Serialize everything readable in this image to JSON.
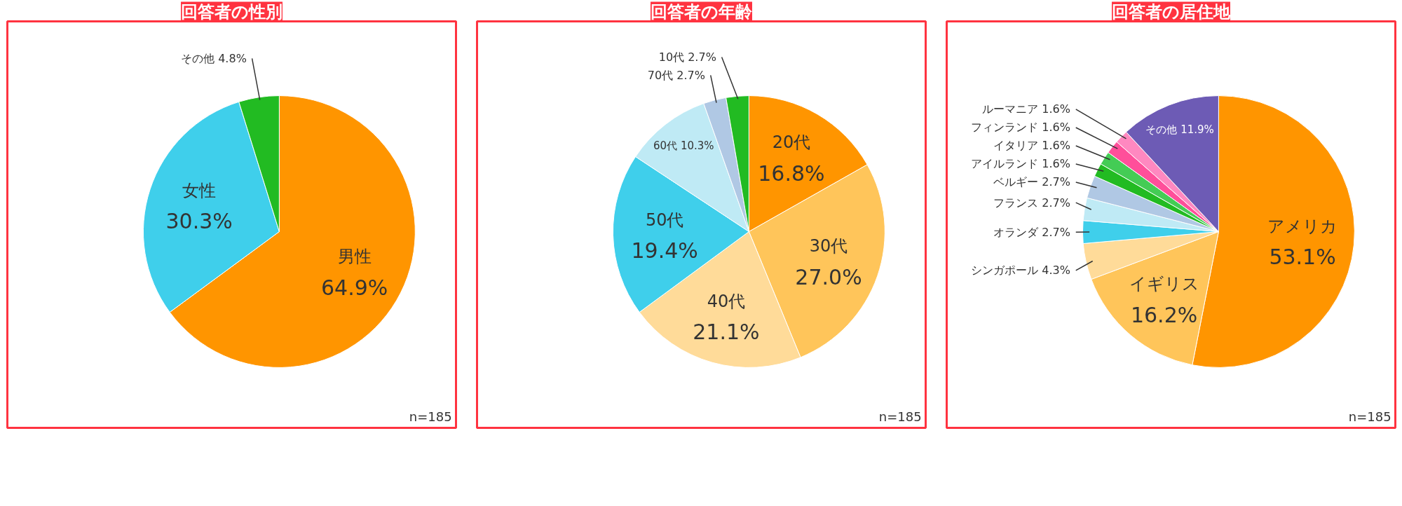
{
  "chart_data": [
    {
      "type": "pie",
      "title": "回答者の性別",
      "categories": [
        "男性",
        "女性",
        "その他"
      ],
      "values": [
        64.9,
        30.3,
        4.8
      ],
      "value_labels": [
        "64.9%",
        "30.3%",
        "4.8%"
      ],
      "colors": [
        "#ff9500",
        "#3fcfeb",
        "#22bb22"
      ],
      "annotations": [
        "n=185"
      ]
    },
    {
      "type": "pie",
      "title": "回答者の年齢",
      "categories": [
        "20代",
        "30代",
        "40代",
        "50代",
        "60代",
        "70代",
        "10代"
      ],
      "values": [
        16.8,
        27.0,
        21.1,
        19.4,
        10.3,
        2.7,
        2.7
      ],
      "value_labels": [
        "16.8%",
        "27.0%",
        "21.1%",
        "19.4%",
        "10.3%",
        "2.7%",
        "2.7%"
      ],
      "colors": [
        "#ff9500",
        "#ffc55a",
        "#ffdb99",
        "#3fcfeb",
        "#bfeaf5",
        "#b0c8e4",
        "#22bb22"
      ],
      "annotations": [
        "n=185"
      ]
    },
    {
      "type": "pie",
      "title": "回答者の居住地",
      "categories": [
        "アメリカ",
        "イギリス",
        "シンガポール",
        "オランダ",
        "フランス",
        "ベルギー",
        "アイルランド",
        "イタリア",
        "フィンランド",
        "ルーマニア",
        "その他"
      ],
      "values": [
        53.1,
        16.2,
        4.3,
        2.7,
        2.7,
        2.7,
        1.6,
        1.6,
        1.6,
        1.6,
        11.9
      ],
      "value_labels": [
        "53.1%",
        "16.2%",
        "4.3%",
        "2.7%",
        "2.7%",
        "2.7%",
        "1.6%",
        "1.6%",
        "1.6%",
        "1.6%",
        "11.9%"
      ],
      "colors": [
        "#ff9500",
        "#ffc55a",
        "#ffdb99",
        "#3fcfeb",
        "#bfeaf5",
        "#b0c8e4",
        "#22bb22",
        "#44cc55",
        "#ff4f9a",
        "#ff88c0",
        "#6d5bb5"
      ],
      "annotations": [
        "n=185"
      ]
    }
  ]
}
